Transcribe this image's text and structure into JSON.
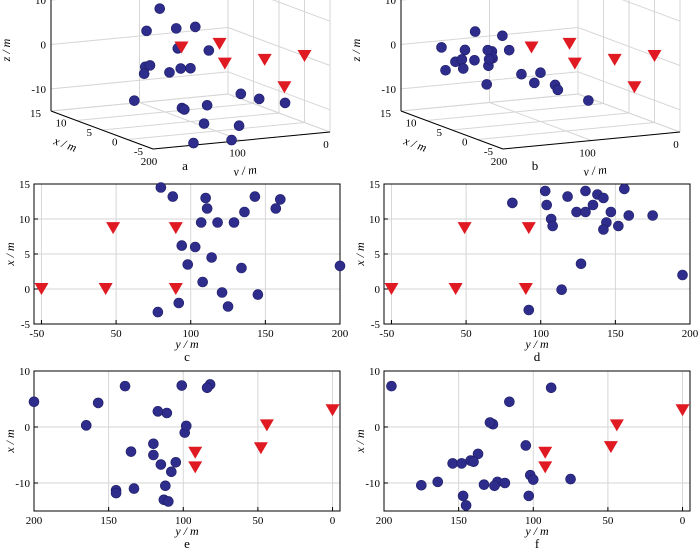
{
  "colors": {
    "source": "#2e2d8c",
    "receiver": "#e01a22",
    "grid": "#d6d6d6",
    "frame": "#000000"
  },
  "chart_data": [
    {
      "id": "a",
      "type": "scatter3d",
      "panel_label": "a",
      "xlabel": "x / m",
      "ylabel": "y / m",
      "zlabel": "z / m",
      "x_ticks": [
        "-5",
        "0",
        "5",
        "10",
        "15"
      ],
      "y_ticks": [
        "200",
        "100",
        "0"
      ],
      "z_ticks": [
        "-10",
        "0",
        "10"
      ],
      "sources": [
        [
          14.5,
          80,
          6
        ],
        [
          12,
          74,
          -2
        ],
        [
          15,
          92,
          1
        ],
        [
          13,
          105,
          -6
        ],
        [
          12,
          112,
          -7
        ],
        [
          9,
          88,
          -5
        ],
        [
          6,
          118,
          -4
        ],
        [
          13,
          70,
          2
        ],
        [
          11,
          60,
          3
        ],
        [
          5,
          100,
          -3
        ],
        [
          6,
          140,
          -2
        ],
        [
          0,
          110,
          -9
        ],
        [
          -2,
          125,
          -12
        ],
        [
          -4,
          95,
          -5
        ],
        [
          -2,
          150,
          -8
        ],
        [
          1,
          130,
          -10
        ],
        [
          -6,
          160,
          -14
        ],
        [
          -8,
          120,
          -10
        ],
        [
          -10,
          140,
          -12
        ],
        [
          3,
          175,
          -8
        ],
        [
          8,
          62,
          -1
        ],
        [
          -5,
          80,
          -6
        ],
        [
          -4,
          45,
          -8
        ]
      ],
      "receivers": [
        [
          0,
          0,
          0
        ],
        [
          0,
          45,
          0
        ],
        [
          0,
          90,
          0
        ],
        [
          8.5,
          47,
          0
        ],
        [
          8.5,
          90,
          0
        ],
        [
          -3,
          40,
          -5
        ]
      ]
    },
    {
      "id": "b",
      "type": "scatter3d",
      "panel_label": "b",
      "xlabel": "x / m",
      "ylabel": "y / m",
      "zlabel": "z / m",
      "x_ticks": [
        "-5",
        "0",
        "5",
        "10",
        "15"
      ],
      "y_ticks": [
        "200",
        "100",
        "0"
      ],
      "z_ticks": [
        "-10",
        "0",
        "10"
      ],
      "sources": [
        [
          14,
          103,
          -3
        ],
        [
          13,
          108,
          -4
        ],
        [
          12,
          115,
          -3
        ],
        [
          11,
          125,
          -1
        ],
        [
          10,
          130,
          -4
        ],
        [
          9,
          135,
          -2
        ],
        [
          11,
          140,
          -3
        ],
        [
          12,
          145,
          -1
        ],
        [
          13,
          150,
          -4
        ],
        [
          10,
          160,
          -2
        ],
        [
          8,
          170,
          -3
        ],
        [
          14,
          160,
          -1
        ],
        [
          9,
          120,
          3
        ],
        [
          7,
          110,
          -5
        ],
        [
          5,
          100,
          -4
        ],
        [
          3,
          95,
          -6
        ],
        [
          -1,
          115,
          -5
        ],
        [
          -3,
          92,
          -7
        ],
        [
          10,
          145,
          4
        ],
        [
          6,
          155,
          -6
        ],
        [
          12,
          95,
          -2
        ],
        [
          8,
          190,
          -3
        ],
        [
          1,
          130,
          -4
        ]
      ],
      "receivers": [
        [
          0,
          0,
          0
        ],
        [
          0,
          45,
          0
        ],
        [
          0,
          90,
          0
        ],
        [
          8.5,
          47,
          0
        ],
        [
          8.5,
          90,
          0
        ],
        [
          -3,
          40,
          -5
        ]
      ]
    },
    {
      "id": "c",
      "type": "scatter",
      "panel_label": "c",
      "xlabel": "y / m",
      "ylabel": "x / m",
      "xlim": [
        -5,
        200
      ],
      "ylim": [
        -5,
        15
      ],
      "x_ticks": [
        -5,
        0,
        50,
        100,
        150,
        200
      ],
      "y_ticks": [
        -5,
        0,
        5,
        10,
        15
      ],
      "sources": [
        [
          80,
          14.5
        ],
        [
          88,
          13.2
        ],
        [
          110,
          13
        ],
        [
          111,
          11.5
        ],
        [
          107,
          9.5
        ],
        [
          118,
          9.5
        ],
        [
          129,
          9.5
        ],
        [
          136,
          11
        ],
        [
          143,
          13.2
        ],
        [
          157,
          11.5
        ],
        [
          160,
          12.8
        ],
        [
          94,
          6.2
        ],
        [
          103,
          6
        ],
        [
          114,
          4.5
        ],
        [
          134,
          3
        ],
        [
          98,
          3.5
        ],
        [
          92,
          -2
        ],
        [
          108,
          1
        ],
        [
          125,
          -2.5
        ],
        [
          78,
          -3.3
        ],
        [
          121,
          -0.5
        ],
        [
          145,
          -0.8
        ],
        [
          200,
          3.3
        ]
      ],
      "receivers": [
        [
          0,
          0
        ],
        [
          43,
          0
        ],
        [
          90,
          0
        ],
        [
          48,
          8.7
        ],
        [
          90,
          8.7
        ]
      ]
    },
    {
      "id": "d",
      "type": "scatter",
      "panel_label": "d",
      "xlabel": "y / m",
      "ylabel": "x / m",
      "xlim": [
        -5,
        200
      ],
      "ylim": [
        -5,
        15
      ],
      "x_ticks": [
        -5,
        0,
        50,
        100,
        150,
        200
      ],
      "y_ticks": [
        -5,
        0,
        5,
        10,
        15
      ],
      "sources": [
        [
          103,
          14
        ],
        [
          118,
          13.2
        ],
        [
          130,
          14
        ],
        [
          138,
          13.5
        ],
        [
          142,
          13
        ],
        [
          156,
          14.3
        ],
        [
          104,
          12
        ],
        [
          135,
          12
        ],
        [
          124,
          11
        ],
        [
          130,
          11
        ],
        [
          147,
          11
        ],
        [
          159,
          10.5
        ],
        [
          175,
          10.5
        ],
        [
          107,
          10
        ],
        [
          144,
          9.5
        ],
        [
          152,
          9
        ],
        [
          142,
          8.5
        ],
        [
          81,
          12.3
        ],
        [
          108,
          9
        ],
        [
          127,
          3.6
        ],
        [
          114,
          -0.1
        ],
        [
          92,
          -3
        ],
        [
          195,
          2
        ]
      ],
      "receivers": [
        [
          0,
          0
        ],
        [
          43,
          0
        ],
        [
          90,
          0
        ],
        [
          49,
          8.7
        ],
        [
          92,
          8.7
        ]
      ]
    },
    {
      "id": "e",
      "type": "scatter",
      "panel_label": "e",
      "xlabel": "y / m",
      "ylabel": "x / m",
      "xlim": [
        200,
        -5
      ],
      "ylim": [
        -15,
        10
      ],
      "x_ticks": [
        200,
        150,
        100,
        50,
        0
      ],
      "y_ticks": [
        -10,
        0,
        10
      ],
      "sources": [
        [
          200,
          4.5
        ],
        [
          157,
          4.3
        ],
        [
          139,
          7.3
        ],
        [
          111,
          2.5
        ],
        [
          117,
          2.8
        ],
        [
          82,
          7.6
        ],
        [
          84,
          7
        ],
        [
          101,
          7.4
        ],
        [
          165,
          0.3
        ],
        [
          99,
          -1
        ],
        [
          120,
          -3
        ],
        [
          98,
          0.2
        ],
        [
          135,
          -4.4
        ],
        [
          120,
          -5
        ],
        [
          115,
          -6.7
        ],
        [
          105,
          -6.3
        ],
        [
          108,
          -8
        ],
        [
          133,
          -11
        ],
        [
          112,
          -10.5
        ],
        [
          145,
          -11.3
        ],
        [
          145,
          -11.8
        ],
        [
          113,
          -13
        ],
        [
          110,
          -13.3
        ]
      ],
      "receivers": [
        [
          0,
          3
        ],
        [
          44,
          0.3
        ],
        [
          48,
          -3.8
        ],
        [
          92,
          -4.6
        ],
        [
          92,
          -7.2
        ]
      ]
    },
    {
      "id": "f",
      "type": "scatter",
      "panel_label": "f",
      "xlabel": "y / m",
      "ylabel": "x / m",
      "xlim": [
        200,
        -5
      ],
      "ylim": [
        -15,
        10
      ],
      "x_ticks": [
        200,
        150,
        100,
        50,
        0
      ],
      "y_ticks": [
        -10,
        0,
        10
      ],
      "sources": [
        [
          195,
          7.3
        ],
        [
          88,
          7
        ],
        [
          116,
          4.5
        ],
        [
          127,
          0.5
        ],
        [
          129,
          0.8
        ],
        [
          105,
          -3.3
        ],
        [
          154,
          -6.5
        ],
        [
          148,
          -6.5
        ],
        [
          142,
          -6
        ],
        [
          137,
          -4.8
        ],
        [
          140,
          -6.2
        ],
        [
          164,
          -9.8
        ],
        [
          124,
          -9.8
        ],
        [
          126,
          -10.5
        ],
        [
          119,
          -10
        ],
        [
          102,
          -8.6
        ],
        [
          100,
          -9.4
        ],
        [
          75,
          -9.3
        ],
        [
          133,
          -10.3
        ],
        [
          147,
          -12.3
        ],
        [
          103,
          -12.3
        ],
        [
          145,
          -14
        ],
        [
          175,
          -10.4
        ]
      ],
      "receivers": [
        [
          0,
          3
        ],
        [
          44,
          0.3
        ],
        [
          48,
          -3.6
        ],
        [
          92,
          -4.6
        ],
        [
          92,
          -7.2
        ]
      ]
    }
  ]
}
